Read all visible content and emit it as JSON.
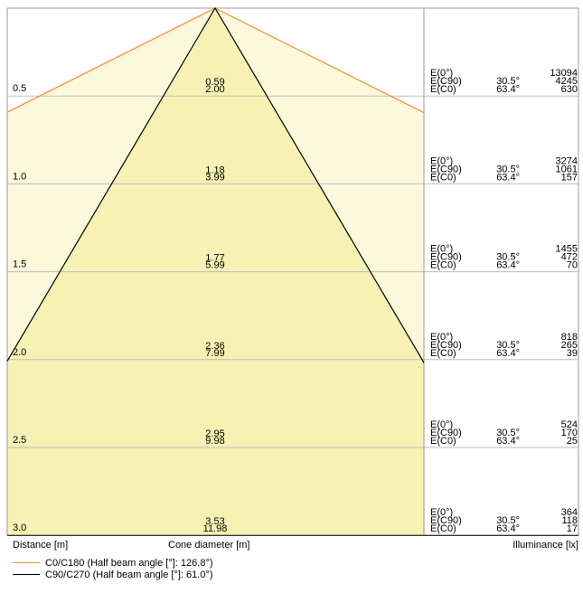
{
  "chart_data": {
    "type": "cone-diagram",
    "axis_labels": {
      "distance": "Distance [m]",
      "cone_diameter": "Cone diameter [m]",
      "illuminance": "Illuminance [lx]"
    },
    "legend": [
      {
        "label": "C0/C180 (Half beam angle [°]: 126.8°)",
        "color": "#f28c28"
      },
      {
        "label": "C90/C270 (Half beam angle [°]: 61.0°)",
        "color": "#000000"
      }
    ],
    "half_beam_angles_deg": {
      "C0": 126.8,
      "C90": 61.0
    },
    "illuminance_angles": {
      "c90": "30.5°",
      "c0": "63.4°"
    },
    "row_labels": [
      "E(0°)",
      "E(C90)",
      "E(C0)"
    ],
    "rows": [
      {
        "distance": "0.5",
        "d_c90": "0.59",
        "d_c0": "2.00",
        "e0": "13094",
        "ec90": "4245",
        "ec0": "630"
      },
      {
        "distance": "1.0",
        "d_c90": "1.18",
        "d_c0": "3.99",
        "e0": "3274",
        "ec90": "1061",
        "ec0": "157"
      },
      {
        "distance": "1.5",
        "d_c90": "1.77",
        "d_c0": "5.99",
        "e0": "1455",
        "ec90": "472",
        "ec0": "70"
      },
      {
        "distance": "2.0",
        "d_c90": "2.36",
        "d_c0": "7.99",
        "e0": "818",
        "ec90": "265",
        "ec0": "39"
      },
      {
        "distance": "2.5",
        "d_c90": "2.95",
        "d_c0": "9.98",
        "e0": "524",
        "ec90": "170",
        "ec0": "25"
      },
      {
        "distance": "3.0",
        "d_c90": "3.53",
        "d_c0": "11.98",
        "e0": "364",
        "ec90": "118",
        "ec0": "17"
      }
    ],
    "colors": {
      "cone_fill": "#f7f2b4",
      "grid": "#bdbdbd",
      "frame": "#9a9a9a"
    }
  }
}
